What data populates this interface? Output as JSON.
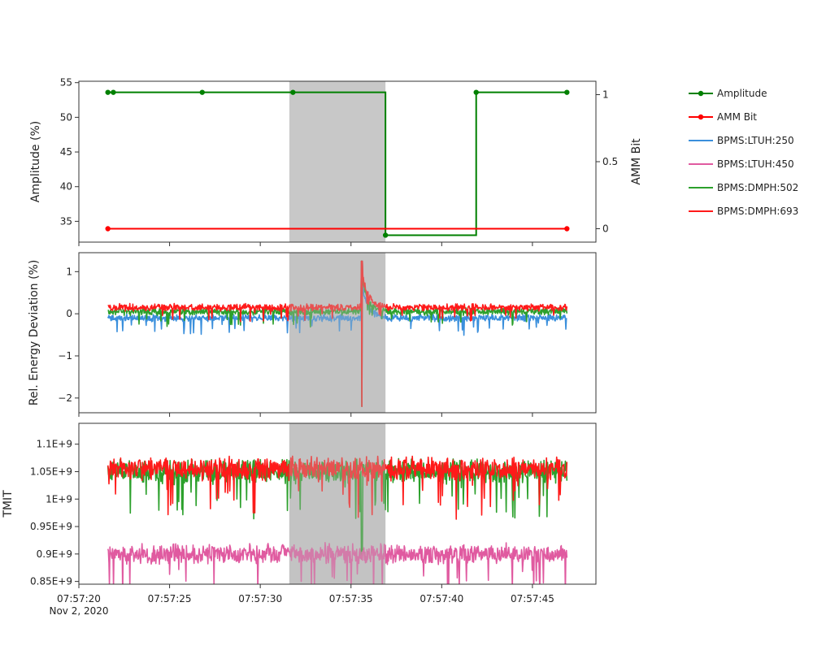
{
  "chart_data": {
    "type": "line",
    "shared_x": {
      "ticks": [
        "07:57:20",
        "07:57:25",
        "07:57:30",
        "07:57:35",
        "07:57:40",
        "07:57:45"
      ],
      "date_label": "Nov 2, 2020",
      "range": [
        "07:57:20",
        "07:57:48.5"
      ]
    },
    "highlight": {
      "start": "07:57:31.6",
      "end": "07:57:36.9",
      "color": "#c8c8c8"
    },
    "legend": {
      "placement": "right",
      "entries": [
        {
          "name": "Amplitude",
          "color": "#008000",
          "markers": true
        },
        {
          "name": "AMM Bit",
          "color": "#ff0000",
          "markers": true
        },
        {
          "name": "BPMS:LTUH:250",
          "color": "#3a8fdc",
          "markers": false
        },
        {
          "name": "BPMS:LTUH:450",
          "color": "#e05aa0",
          "markers": false
        },
        {
          "name": "BPMS:DMPH:502",
          "color": "#2ca02c",
          "markers": false
        },
        {
          "name": "BPMS:DMPH:693",
          "color": "#ff1a1a",
          "markers": false
        }
      ]
    },
    "panels": [
      {
        "ylabel": "Amplitude (%)",
        "ylim": [
          32,
          55.2
        ],
        "yticks": [
          35,
          40,
          45,
          50,
          55
        ],
        "y2label": "AMM Bit",
        "y2lim": [
          -0.1,
          1.1
        ],
        "y2ticks": [
          "0",
          "0.5",
          "1"
        ],
        "series": [
          {
            "name": "Amplitude",
            "axis": "y",
            "line_shape": "step",
            "x": [
              "07:57:21.6",
              "07:57:21.9",
              "07:57:26.8",
              "07:57:31.8",
              "07:57:36.9",
              "07:57:41.9",
              "07:57:46.9"
            ],
            "values": [
              53.6,
              53.6,
              53.6,
              53.6,
              33.0,
              53.6,
              53.6
            ],
            "marker_x": [
              "07:57:21.6",
              "07:57:21.9",
              "07:57:26.8",
              "07:57:31.8",
              "07:57:36.9",
              "07:57:41.9",
              "07:57:46.9"
            ],
            "marker_values": [
              53.6,
              53.6,
              53.6,
              53.6,
              33.0,
              53.6,
              53.6
            ]
          },
          {
            "name": "AMM Bit",
            "axis": "y2",
            "line_shape": "linear",
            "x": [
              "07:57:21.6",
              "07:57:46.9"
            ],
            "values": [
              0,
              0
            ],
            "marker_x": [
              "07:57:21.6",
              "07:57:46.9"
            ],
            "marker_values": [
              0,
              0
            ]
          }
        ]
      },
      {
        "ylabel": "Rel. Energy Deviation (%)",
        "ylim": [
          -2.35,
          1.45
        ],
        "yticks": [
          -2,
          -1,
          0,
          1
        ],
        "x_range_data": [
          "07:57:21.6",
          "07:57:46.9"
        ],
        "series": [
          {
            "name": "BPMS:LTUH:250",
            "baseline": -0.1,
            "noise": 0.14
          },
          {
            "name": "BPMS:DMPH:502",
            "baseline": 0.05,
            "noise": 0.14
          },
          {
            "name": "BPMS:DMPH:693",
            "baseline": 0.15,
            "noise": 0.14
          }
        ],
        "event": {
          "time": "07:57:35.6",
          "min": -2.2,
          "max": 1.25,
          "recovery_end": "07:57:37.0"
        }
      },
      {
        "ylabel": "TMIT",
        "ylim": [
          845000000.0,
          1138000000.0
        ],
        "yticks": [
          "0.85E+9",
          "0.9E+9",
          "0.95E+9",
          "1E+9",
          "1.05E+9",
          "1.1E+9"
        ],
        "ytick_values": [
          850000000.0,
          900000000.0,
          950000000.0,
          1000000000.0,
          1050000000.0,
          1100000000.0
        ],
        "x_range_data": [
          "07:57:21.6",
          "07:57:46.9"
        ],
        "series": [
          {
            "name": "BPMS:DMPH:502",
            "baseline": 1050000000.0,
            "noise": 35000000.0
          },
          {
            "name": "BPMS:DMPH:693",
            "baseline": 1055000000.0,
            "noise": 35000000.0
          },
          {
            "name": "BPMS:LTUH:450",
            "baseline": 900000000.0,
            "noise": 30000000.0
          }
        ],
        "event": {
          "series": "BPMS:DMPH:502",
          "time": "07:57:35.6",
          "min": 895000000.0
        }
      }
    ]
  }
}
